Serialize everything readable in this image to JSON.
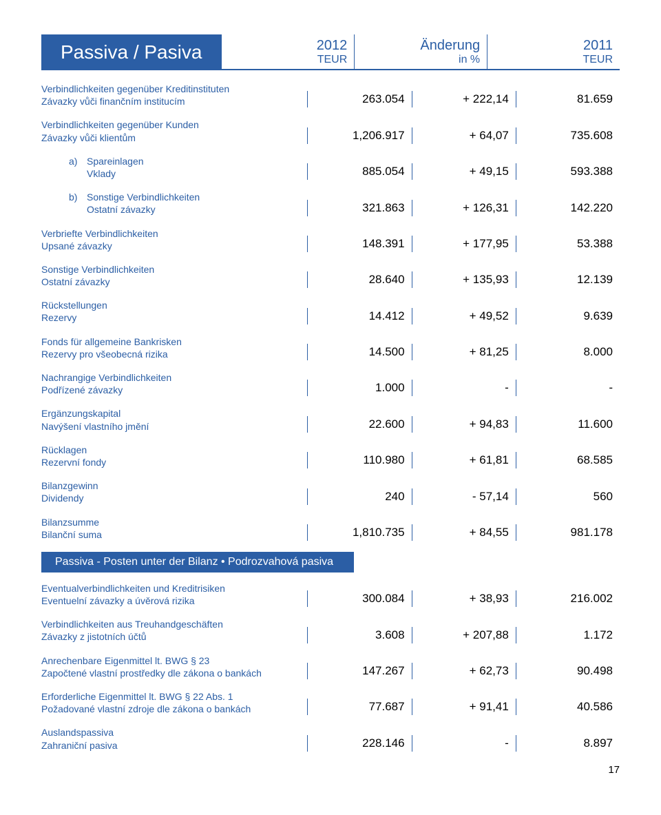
{
  "title": "Passiva / Pasiva",
  "columns": [
    {
      "year": "2012",
      "unit": "TEUR"
    },
    {
      "year": "Änderung",
      "unit": "in %"
    },
    {
      "year": "2011",
      "unit": "TEUR"
    }
  ],
  "rows": [
    {
      "de": "Verbindlichkeiten gegenüber Kreditinstituten",
      "cz": "Závazky vůči finančním institucím",
      "v": [
        "263.054",
        "+ 222,14",
        "81.659"
      ]
    },
    {
      "de": "Verbindlichkeiten gegenüber Kunden",
      "cz": "Závazky vůči klientům",
      "v": [
        "1,206.917",
        "+ 64,07",
        "735.608"
      ]
    },
    {
      "indent": true,
      "marker": "a)",
      "de": "Spareinlagen",
      "cz": "Vklady",
      "v": [
        "885.054",
        "+ 49,15",
        "593.388"
      ]
    },
    {
      "indent": true,
      "marker": "b)",
      "de": "Sonstige Verbindlichkeiten",
      "cz": "Ostatní závazky",
      "v": [
        "321.863",
        "+ 126,31",
        "142.220"
      ]
    },
    {
      "de": "Verbriefte Verbindlichkeiten",
      "cz": "Upsané závazky",
      "v": [
        "148.391",
        "+ 177,95",
        "53.388"
      ]
    },
    {
      "de": "Sonstige Verbindlichkeiten",
      "cz": "Ostatní závazky",
      "v": [
        "28.640",
        "+ 135,93",
        "12.139"
      ]
    },
    {
      "de": "Rückstellungen",
      "cz": "Rezervy",
      "v": [
        "14.412",
        "+ 49,52",
        "9.639"
      ]
    },
    {
      "de": "Fonds für allgemeine Bankrisken",
      "cz": "Rezervy pro všeobecná rizika",
      "v": [
        "14.500",
        "+ 81,25",
        "8.000"
      ]
    },
    {
      "de": "Nachrangige Verbindlichkeiten",
      "cz": "Podřízené závazky",
      "v": [
        "1.000",
        "-",
        "-"
      ]
    },
    {
      "de": "Ergänzungskapital",
      "cz": "Navýšení vlastního jmění",
      "v": [
        "22.600",
        "+ 94,83",
        "11.600"
      ]
    },
    {
      "de": "Rücklagen",
      "cz": "Rezervní fondy",
      "v": [
        "110.980",
        "+ 61,81",
        "68.585"
      ]
    },
    {
      "de": "Bilanzgewinn",
      "cz": "Dividendy",
      "v": [
        "240",
        "- 57,14",
        "560"
      ]
    },
    {
      "de": "Bilanzsumme",
      "cz": "Bilanční suma",
      "v": [
        "1,810.735",
        "+ 84,55",
        "981.178"
      ]
    }
  ],
  "section2_title": "Passiva - Posten unter der Bilanz • Podrozvahová pasiva",
  "rows2": [
    {
      "de": "Eventualverbindlichkeiten und Kreditrisiken",
      "cz": "Eventuelní závazky a úvěrová rizika",
      "v": [
        "300.084",
        "+ 38,93",
        "216.002"
      ]
    },
    {
      "de": "Verbindlichkeiten aus Treuhandgeschäften",
      "cz": "Závazky z jistotních účtů",
      "v": [
        "3.608",
        "+ 207,88",
        "1.172"
      ]
    },
    {
      "de": "Anrechenbare Eigenmittel lt. BWG § 23",
      "cz": "Započtené vlastní prostředky dle zákona o bankách",
      "v": [
        "147.267",
        "+ 62,73",
        "90.498"
      ]
    },
    {
      "de": "Erforderliche Eigenmittel lt. BWG § 22 Abs. 1",
      "cz": "Požadované vlastní zdroje dle zákona o bankách",
      "v": [
        "77.687",
        "+ 91,41",
        "40.586"
      ]
    },
    {
      "de": "Auslandspassiva",
      "cz": "Zahraniční pasiva",
      "v": [
        "228.146",
        "-",
        "8.897"
      ]
    }
  ],
  "page_number": "17"
}
